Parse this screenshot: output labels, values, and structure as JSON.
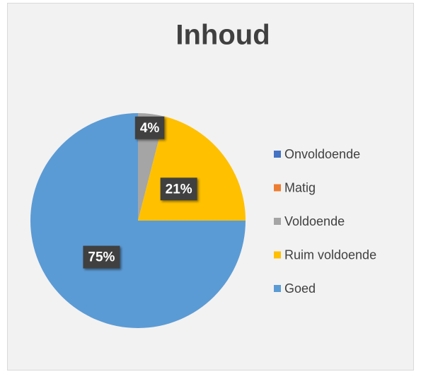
{
  "chart_data": {
    "type": "pie",
    "title": "Inhoud",
    "categories": [
      "Onvoldoende",
      "Matig",
      "Voldoende",
      "Ruim voldoende",
      "Goed"
    ],
    "values": [
      0,
      0,
      4,
      21,
      75
    ],
    "value_labels": [
      null,
      null,
      "4%",
      "21%",
      "75%"
    ],
    "colors": [
      "#4472c4",
      "#ed7d31",
      "#a5a5a5",
      "#ffc000",
      "#5b9bd5"
    ],
    "legend": "right"
  }
}
